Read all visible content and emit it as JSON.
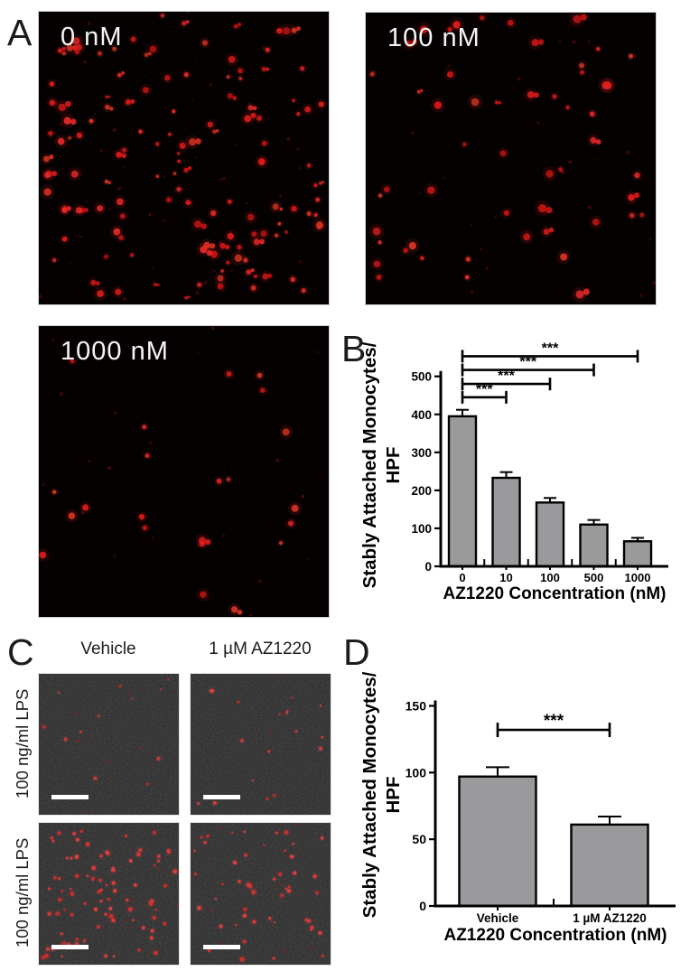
{
  "colors": {
    "bar_fill": "#9a9a9c",
    "axis": "#000000",
    "dot_red_bright": "#e41c1c",
    "dot_red_soft": "#b01616",
    "micro_a_background": "#060101",
    "micro_c_background": "#2a2a2a",
    "label_white": "#f5f5f5"
  },
  "panels": {
    "A": {
      "letter": "A",
      "images": [
        {
          "label": "0 nM",
          "dot_count": 135,
          "faint_count": 60
        },
        {
          "label": "100 nM",
          "dot_count": 52,
          "faint_count": 40
        },
        {
          "label": "1000 nM",
          "dot_count": 22,
          "faint_count": 25
        }
      ]
    },
    "B": {
      "letter": "B"
    },
    "C": {
      "letter": "C",
      "column_headers": [
        "Vehicle",
        "1 µM AZ1220"
      ],
      "row_labels": [
        "100 ng/ml LPS",
        "100 ng/ml LPS"
      ],
      "images": [
        {
          "column": "Vehicle",
          "row": "100 ng/ml LPS",
          "dot_count": 12,
          "faint_count": 10,
          "scale_bar": true
        },
        {
          "column": "1 µM AZ1220",
          "row": "100 ng/ml LPS",
          "dot_count": 18,
          "faint_count": 10,
          "scale_bar": true
        },
        {
          "column": "Vehicle",
          "row": "100 ng/ml LPS",
          "dot_count": 85,
          "faint_count": 15,
          "scale_bar": true
        },
        {
          "column": "1 µM AZ1220",
          "row": "100 ng/ml LPS",
          "dot_count": 50,
          "faint_count": 12,
          "scale_bar": true
        }
      ]
    },
    "D": {
      "letter": "D"
    }
  },
  "chart_data": [
    {
      "id": "B",
      "type": "bar",
      "title": "",
      "categories": [
        "0",
        "10",
        "100",
        "500",
        "1000"
      ],
      "values": [
        395,
        233,
        168,
        110,
        66
      ],
      "errors": [
        17,
        15,
        12,
        12,
        9
      ],
      "yticks": [
        0,
        100,
        200,
        300,
        400,
        500
      ],
      "ylim": [
        0,
        560
      ],
      "xlabel": "AZ1220 Concentration (nM)",
      "ylabel_lines": [
        "Stably Attached Monocytes/",
        "HPF"
      ],
      "grid": false,
      "legend": "none",
      "significance": [
        {
          "from": 0,
          "to": 1,
          "y": 445,
          "label": "***"
        },
        {
          "from": 0,
          "to": 2,
          "y": 480,
          "label": "***"
        },
        {
          "from": 0,
          "to": 3,
          "y": 517,
          "label": "***"
        },
        {
          "from": 0,
          "to": 4,
          "y": 553,
          "label": "***"
        }
      ]
    },
    {
      "id": "D",
      "type": "bar",
      "title": "",
      "categories": [
        "Vehicle",
        "1 µM AZ1220"
      ],
      "values": [
        97,
        61
      ],
      "errors": [
        7,
        6
      ],
      "yticks": [
        0,
        50,
        100,
        150
      ],
      "ylim": [
        0,
        150
      ],
      "xlabel": "AZ1220 Concentration (nM)",
      "ylabel_lines": [
        "Stably Attached Monocytes/",
        "HPF"
      ],
      "grid": false,
      "legend": "none",
      "significance": [
        {
          "from": 0,
          "to": 1,
          "y": 132,
          "label": "***"
        }
      ]
    }
  ]
}
